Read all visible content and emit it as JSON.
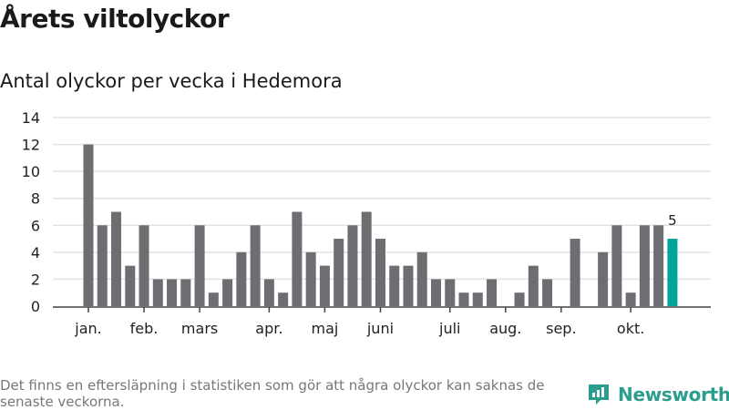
{
  "title": "Årets viltolyckor",
  "subtitle": "Antal olyckor per vecka i Hedemora",
  "note": "Det finns en eftersläpning i statistiken som gör att några olyckor kan saknas de senaste veckorna.",
  "logo": "Newsworthy",
  "colors": {
    "bar": "#6e6d72",
    "highlight": "#00a39a",
    "grid": "#e2e2e2",
    "axis": "#444444",
    "brand": "#2a9d8f"
  },
  "chart_data": {
    "type": "bar",
    "title": "Antal olyckor per vecka i Hedemora",
    "xlabel": "",
    "ylabel": "",
    "ylim": [
      0,
      14
    ],
    "yticks": [
      0,
      2,
      4,
      6,
      8,
      10,
      12,
      14
    ],
    "values": [
      12,
      6,
      7,
      3,
      6,
      2,
      2,
      2,
      6,
      1,
      2,
      4,
      6,
      2,
      1,
      7,
      4,
      3,
      5,
      6,
      7,
      5,
      3,
      3,
      4,
      2,
      2,
      1,
      1,
      2,
      0,
      1,
      3,
      2,
      0,
      5,
      0,
      4,
      6,
      1,
      6,
      6,
      5
    ],
    "highlight_index": 42,
    "highlight_label": "5",
    "month_ticks": [
      {
        "label": "jan.",
        "week_index": 0
      },
      {
        "label": "feb.",
        "week_index": 4
      },
      {
        "label": "mars",
        "week_index": 8
      },
      {
        "label": "apr.",
        "week_index": 13
      },
      {
        "label": "maj",
        "week_index": 17
      },
      {
        "label": "juni",
        "week_index": 21
      },
      {
        "label": "juli",
        "week_index": 26
      },
      {
        "label": "aug.",
        "week_index": 30
      },
      {
        "label": "sep.",
        "week_index": 34
      },
      {
        "label": "okt.",
        "week_index": 39
      }
    ],
    "grid": true
  }
}
